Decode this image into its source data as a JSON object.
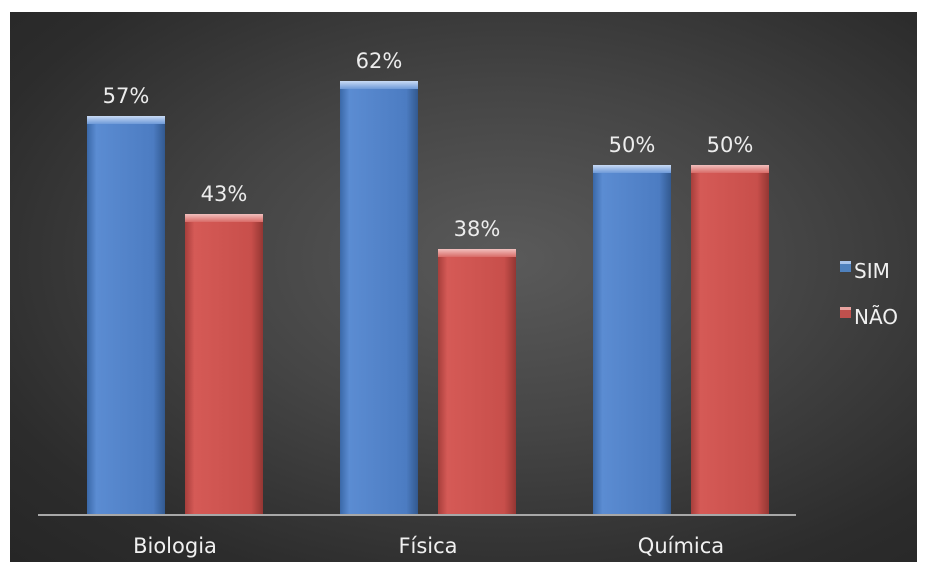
{
  "chart_data": {
    "type": "bar",
    "categories": [
      "Biologia",
      "Física",
      "Química"
    ],
    "series": [
      {
        "name": "SIM",
        "values": [
          57,
          62,
          50
        ],
        "color": "#4f81bd"
      },
      {
        "name": "NÃO",
        "values": [
          43,
          38,
          50
        ],
        "color": "#c0504d"
      }
    ],
    "value_labels": [
      [
        "57%",
        "62%",
        "50%"
      ],
      [
        "43%",
        "38%",
        "50%"
      ]
    ],
    "ylim": [
      0,
      70
    ],
    "grid": false,
    "legend": "right"
  }
}
